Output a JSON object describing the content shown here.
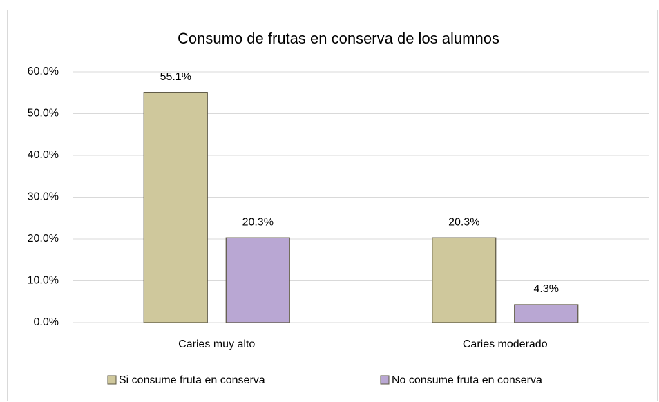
{
  "chart_data": {
    "type": "bar",
    "title": "Consumo de frutas en conserva de los alumnos",
    "categories": [
      "Caries muy alto",
      "Caries moderado"
    ],
    "series": [
      {
        "name": "Si consume fruta en conserva",
        "color": "#cfc89c",
        "values": [
          55.1,
          20.3
        ],
        "value_labels": [
          "55.1%",
          "20.3%"
        ]
      },
      {
        "name": "No consume fruta en conserva",
        "color": "#b9a7d3",
        "values": [
          20.3,
          4.3
        ],
        "value_labels": [
          "20.3%",
          "4.3%"
        ]
      }
    ],
    "ylim": [
      0,
      60
    ],
    "yticks": [
      {
        "value": 0,
        "label": "0.0%"
      },
      {
        "value": 10,
        "label": "10.0%"
      },
      {
        "value": 20,
        "label": "20.0%"
      },
      {
        "value": 30,
        "label": "30.0%"
      },
      {
        "value": 40,
        "label": "40.0%"
      },
      {
        "value": 50,
        "label": "50.0%"
      },
      {
        "value": 60,
        "label": "60.0%"
      }
    ],
    "grid": true,
    "legend": "bottom"
  }
}
